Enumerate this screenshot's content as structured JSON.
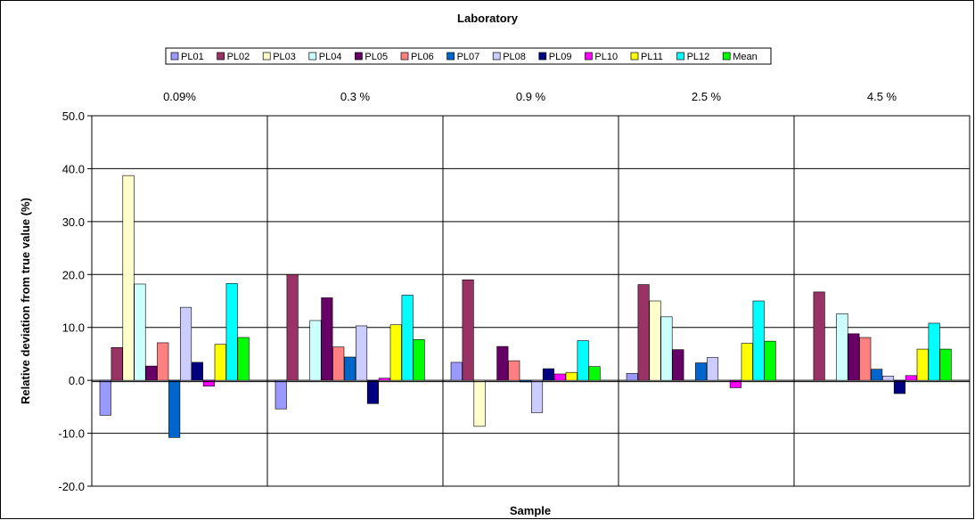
{
  "chart_data": {
    "type": "bar",
    "title": "Laboratory",
    "xlabel": "Sample",
    "ylabel": "Relative deviation from true value (%)",
    "ylim": [
      -20,
      50
    ],
    "yticks": [
      -20,
      -10,
      0,
      10,
      20,
      30,
      40,
      50
    ],
    "ytick_labels": [
      "-20.0",
      "-10.0",
      "0.0",
      "10.0",
      "20.0",
      "30.0",
      "40.0",
      "50.0"
    ],
    "grid": true,
    "legend_position": "top",
    "categories": [
      "0.09%",
      "0.3 %",
      "0.9 %",
      "2.5 %",
      "4.5 %"
    ],
    "series": [
      {
        "name": "PL01",
        "color": "#9999ff",
        "values": [
          -6.6,
          -5.4,
          3.4,
          1.3,
          0.0
        ]
      },
      {
        "name": "PL02",
        "color": "#993366",
        "values": [
          6.2,
          20.0,
          19.0,
          18.1,
          16.7
        ]
      },
      {
        "name": "PL03",
        "color": "#ffffcc",
        "values": [
          38.7,
          0.0,
          -8.7,
          15.0,
          0.0
        ]
      },
      {
        "name": "PL04",
        "color": "#ccffff",
        "values": [
          18.2,
          11.3,
          0.0,
          12.0,
          12.6
        ]
      },
      {
        "name": "PL05",
        "color": "#660066",
        "values": [
          2.7,
          15.6,
          6.4,
          5.8,
          8.8
        ]
      },
      {
        "name": "PL06",
        "color": "#ff8080",
        "values": [
          7.1,
          6.3,
          3.7,
          0.0,
          8.1
        ]
      },
      {
        "name": "PL07",
        "color": "#0066cc",
        "values": [
          -10.8,
          4.4,
          -0.3,
          3.3,
          2.1
        ]
      },
      {
        "name": "PL08",
        "color": "#ccccff",
        "values": [
          13.8,
          10.3,
          -6.1,
          4.3,
          0.8
        ]
      },
      {
        "name": "PL09",
        "color": "#000080",
        "values": [
          3.4,
          -4.4,
          2.2,
          0.0,
          -2.5
        ]
      },
      {
        "name": "PL10",
        "color": "#ff00ff",
        "values": [
          -1.1,
          0.4,
          1.2,
          -1.4,
          0.9
        ]
      },
      {
        "name": "PL11",
        "color": "#ffff00",
        "values": [
          6.8,
          10.5,
          1.5,
          7.0,
          5.9
        ]
      },
      {
        "name": "PL12",
        "color": "#00ffff",
        "values": [
          18.3,
          16.1,
          7.5,
          15.0,
          10.8
        ]
      },
      {
        "name": "Mean",
        "color": "#00ff00",
        "values": [
          8.1,
          7.7,
          2.6,
          7.4,
          5.9
        ]
      }
    ]
  }
}
